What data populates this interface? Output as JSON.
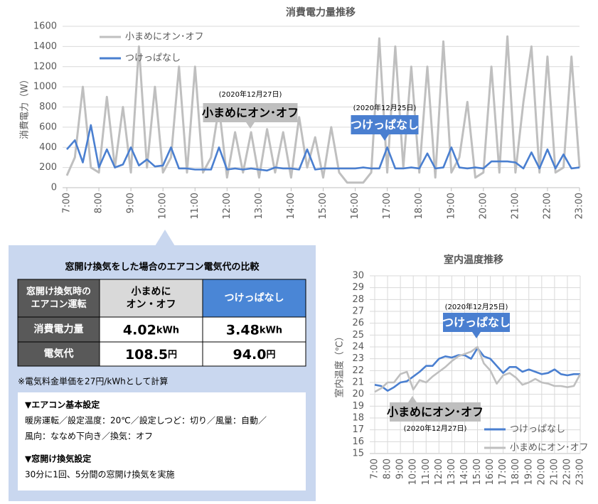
{
  "chart_data": [
    {
      "type": "line",
      "title": "消費電力量推移",
      "ylabel": "消費電力（W）",
      "x": [
        7,
        7.25,
        7.5,
        7.75,
        8,
        8.25,
        8.5,
        8.75,
        9,
        9.25,
        9.5,
        9.75,
        10,
        10.25,
        10.5,
        10.75,
        11,
        11.25,
        11.5,
        11.75,
        12,
        12.25,
        12.5,
        12.75,
        13,
        13.25,
        13.5,
        13.75,
        14,
        14.25,
        14.5,
        14.75,
        15,
        15.25,
        15.5,
        15.75,
        16,
        16.25,
        16.5,
        16.75,
        17,
        17.25,
        17.5,
        17.75,
        18,
        18.25,
        18.5,
        18.75,
        19,
        19.25,
        19.5,
        19.75,
        20,
        20.25,
        20.5,
        20.75,
        21,
        21.25,
        21.5,
        21.75,
        22,
        22.25,
        22.5,
        22.75,
        23
      ],
      "series": [
        {
          "name": "小まめにオン･オフ",
          "color": "#bfbfbf",
          "values": [
            120,
            300,
            1000,
            200,
            150,
            900,
            200,
            800,
            150,
            1400,
            200,
            1000,
            150,
            300,
            1200,
            150,
            1200,
            150,
            300,
            800,
            100,
            550,
            150,
            550,
            100,
            580,
            150,
            550,
            100,
            700,
            200,
            500,
            100,
            600,
            150,
            50,
            50,
            50,
            150,
            1480,
            150,
            1400,
            200,
            1200,
            150,
            1200,
            100,
            1450,
            150,
            300,
            850,
            100,
            150,
            1200,
            150,
            1500,
            150,
            850,
            1400,
            150,
            1300,
            150,
            200,
            1300,
            200
          ]
        },
        {
          "name": "つけっぱなし",
          "color": "#4a7fd0",
          "values": [
            380,
            470,
            250,
            620,
            200,
            380,
            200,
            230,
            400,
            220,
            280,
            210,
            220,
            400,
            190,
            190,
            180,
            180,
            180,
            400,
            180,
            190,
            180,
            190,
            180,
            170,
            200,
            190,
            190,
            180,
            380,
            180,
            190,
            190,
            190,
            190,
            190,
            200,
            190,
            190,
            400,
            190,
            190,
            200,
            190,
            340,
            190,
            200,
            400,
            200,
            190,
            200,
            190,
            260,
            260,
            260,
            250,
            190,
            350,
            190,
            380,
            190,
            330,
            190,
            200
          ]
        }
      ],
      "xlim": [
        7,
        23
      ],
      "xticks": [
        {
          "value": 7,
          "label": "7:00"
        },
        {
          "value": 8,
          "label": "8:00"
        },
        {
          "value": 9,
          "label": "9:00"
        },
        {
          "value": 10,
          "label": "10:00"
        },
        {
          "value": 11,
          "label": "11:00"
        },
        {
          "value": 12,
          "label": "12:00"
        },
        {
          "value": 13,
          "label": "13:00"
        },
        {
          "value": 14,
          "label": "14:00"
        },
        {
          "value": 15,
          "label": "15:00"
        },
        {
          "value": 16,
          "label": "16:00"
        },
        {
          "value": 17,
          "label": "17:00"
        },
        {
          "value": 18,
          "label": "18:00"
        },
        {
          "value": 19,
          "label": "19:00"
        },
        {
          "value": 20,
          "label": "20:00"
        },
        {
          "value": 21,
          "label": "21:00"
        },
        {
          "value": 22,
          "label": "22:00"
        },
        {
          "value": 23,
          "label": "23:00"
        }
      ],
      "ylim": [
        0,
        1600
      ],
      "yticks": [
        0,
        200,
        400,
        600,
        800,
        1000,
        1200,
        1400,
        1600
      ],
      "grid": "y",
      "legend": "top-left",
      "annotations": [
        {
          "date": "(2020年12月27日)",
          "label": "小まめにオン･オフ",
          "series": 0
        },
        {
          "date": "(2020年12月25日)",
          "label": "つけっぱなし",
          "series": 1
        }
      ]
    },
    {
      "type": "line",
      "title": "室内温度推移",
      "ylabel": "室内温度（℃）",
      "x": [
        7,
        7.5,
        8,
        8.5,
        9,
        9.5,
        10,
        10.5,
        11,
        11.5,
        12,
        12.5,
        13,
        13.5,
        14,
        14.5,
        15,
        15.5,
        16,
        16.5,
        17,
        17.5,
        18,
        18.5,
        19,
        19.5,
        20,
        20.5,
        21,
        21.5,
        22,
        22.5,
        23
      ],
      "series": [
        {
          "name": "つけっぱなし",
          "color": "#4a7fd0",
          "values": [
            20.8,
            20.7,
            20.3,
            20.6,
            21.0,
            21.1,
            21.5,
            21.9,
            22.4,
            22.4,
            23.0,
            23.2,
            23.1,
            23.3,
            23.3,
            23.0,
            23.9,
            23.2,
            23.0,
            22.4,
            21.8,
            22.3,
            22.3,
            21.9,
            22.1,
            21.9,
            21.7,
            21.8,
            22.1,
            21.7,
            21.6,
            21.7,
            21.7
          ]
        },
        {
          "name": "小まめにオン･オフ",
          "color": "#bfbfbf",
          "values": [
            20.2,
            20.5,
            21.0,
            21.0,
            21.7,
            21.9,
            20.4,
            21.2,
            21.0,
            21.5,
            21.9,
            22.3,
            22.8,
            23.2,
            23.4,
            23.6,
            24.0,
            22.6,
            22.0,
            20.9,
            21.6,
            21.8,
            21.4,
            20.8,
            21.0,
            21.3,
            21.0,
            20.9,
            20.7,
            20.7,
            20.6,
            20.7,
            21.7
          ]
        }
      ],
      "xlim": [
        7,
        23
      ],
      "xticks": [
        {
          "value": 7,
          "label": "7:00"
        },
        {
          "value": 8,
          "label": "8:00"
        },
        {
          "value": 9,
          "label": "9:00"
        },
        {
          "value": 10,
          "label": "10:00"
        },
        {
          "value": 11,
          "label": "11:00"
        },
        {
          "value": 12,
          "label": "12:00"
        },
        {
          "value": 13,
          "label": "13:00"
        },
        {
          "value": 14,
          "label": "14:00"
        },
        {
          "value": 15,
          "label": "15:00"
        },
        {
          "value": 16,
          "label": "16:00"
        },
        {
          "value": 17,
          "label": "17:00"
        },
        {
          "value": 18,
          "label": "18:00"
        },
        {
          "value": 19,
          "label": "19:00"
        },
        {
          "value": 20,
          "label": "20:00"
        },
        {
          "value": 21,
          "label": "21:00"
        },
        {
          "value": 22,
          "label": "22:00"
        },
        {
          "value": 23,
          "label": "23:00"
        }
      ],
      "ylim": [
        15,
        30
      ],
      "yticks": [
        15,
        16,
        17,
        18,
        19,
        20,
        21,
        22,
        23,
        24,
        25,
        26,
        27,
        28,
        29,
        30
      ],
      "grid": "both",
      "legend": "bottom-right",
      "annotations": [
        {
          "date": "(2020年12月25日)",
          "label": "つけっぱなし",
          "series": 0
        },
        {
          "date": "(2020年12月27日)",
          "label": "小まめにオン･オフ",
          "series": 1
        }
      ]
    }
  ],
  "table": {
    "title": "窓開け換気をした場合のエアコン電気代の比較",
    "header": [
      [
        "窓開け換気時の",
        "エアコン運転"
      ],
      [
        "小まめに",
        "オン・オフ"
      ],
      [
        "つけっぱなし"
      ]
    ],
    "rows": [
      {
        "label": "消費電力量",
        "cells": [
          {
            "value": "4.02",
            "unit": "kWh"
          },
          {
            "value": "3.48",
            "unit": "kWh"
          }
        ]
      },
      {
        "label": "電気代",
        "cells": [
          {
            "value": "108.5",
            "unit": "円"
          },
          {
            "value": "94.0",
            "unit": "円"
          }
        ]
      }
    ]
  },
  "note": "※電気料金単価を27円/kWhとして計算",
  "settings": [
    {
      "heading": "▼エアコン基本設定",
      "lines": [
        "暖房運転／設定温度：20℃／設定しつど：切り／風量：自動／",
        "風向：ななめ下向き／換気：オフ"
      ]
    },
    {
      "heading": "▼窓開け換気設定",
      "lines": [
        "30分に1回、5分間の窓開け換気を実施"
      ]
    }
  ]
}
